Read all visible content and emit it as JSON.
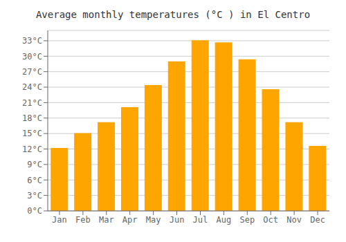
{
  "chart_data": {
    "type": "bar",
    "title": "Average monthly temperatures (°C ) in El Centro",
    "categories": [
      "Jan",
      "Feb",
      "Mar",
      "Apr",
      "May",
      "Jun",
      "Jul",
      "Aug",
      "Sep",
      "Oct",
      "Nov",
      "Dec"
    ],
    "values": [
      12.2,
      15.1,
      17.2,
      20.1,
      24.4,
      29.0,
      33.1,
      32.7,
      29.4,
      23.6,
      17.2,
      12.6
    ],
    "color": "#FFA500",
    "ylim": [
      0,
      35
    ],
    "yticks": [
      {
        "value": 0,
        "label": "0°C"
      },
      {
        "value": 3,
        "label": "3°C"
      },
      {
        "value": 6,
        "label": "6°C"
      },
      {
        "value": 9,
        "label": "9°C"
      },
      {
        "value": 12,
        "label": "12°C"
      },
      {
        "value": 15,
        "label": "15°C"
      },
      {
        "value": 18,
        "label": "18°C"
      },
      {
        "value": 21,
        "label": "21°C"
      },
      {
        "value": 24,
        "label": "24°C"
      },
      {
        "value": 27,
        "label": "27°C"
      },
      {
        "value": 30,
        "label": "30°C"
      },
      {
        "value": 33,
        "label": "33°C"
      }
    ],
    "grid": true
  }
}
